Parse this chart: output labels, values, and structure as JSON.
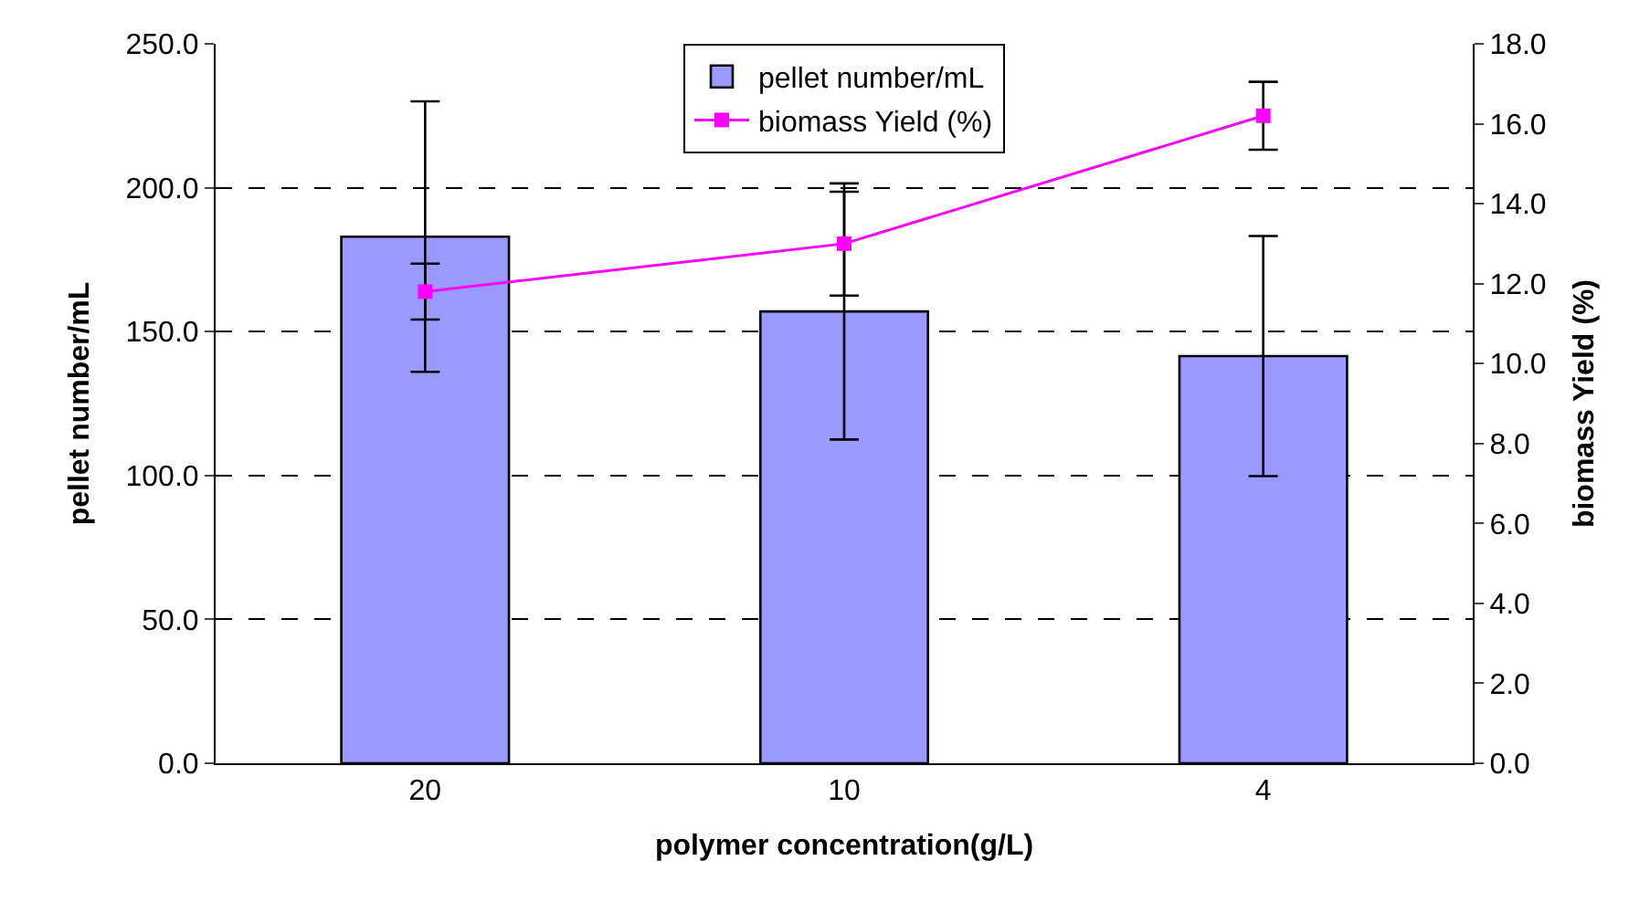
{
  "chart_data": {
    "type": "bar",
    "xlabel": "polymer concentration(g/L)",
    "ylabel": "pellet number/mL",
    "y2label": "biomass Yield (%)",
    "categories": [
      "20",
      "10",
      "4"
    ],
    "series": [
      {
        "name": "pellet number/mL",
        "color": "#9999ff",
        "values": [
          183,
          157,
          141.5
        ],
        "errors": [
          47,
          44.5,
          41.7
        ]
      },
      {
        "name": "biomass Yield (%)",
        "type": "line",
        "axis": "y2",
        "color": "#ff00ff",
        "marker": "square",
        "values": [
          11.8,
          13.0,
          16.2
        ],
        "errors": [
          0.7,
          1.3,
          0.85
        ]
      }
    ],
    "ylim": [
      0,
      250
    ],
    "yticks": [
      {
        "value": 0,
        "label": "0.0"
      },
      {
        "value": 50,
        "label": "50.0"
      },
      {
        "value": 100,
        "label": "100.0"
      },
      {
        "value": 150,
        "label": "150.0"
      },
      {
        "value": 200,
        "label": "200.0"
      },
      {
        "value": 250,
        "label": "250.0"
      }
    ],
    "y2lim": [
      0,
      18
    ],
    "y2ticks": [
      {
        "value": 0,
        "label": "0.0"
      },
      {
        "value": 2,
        "label": "2.0"
      },
      {
        "value": 4,
        "label": "4.0"
      },
      {
        "value": 6,
        "label": "6.0"
      },
      {
        "value": 8,
        "label": "8.0"
      },
      {
        "value": 10,
        "label": "10.0"
      },
      {
        "value": 12,
        "label": "12.0"
      },
      {
        "value": 14,
        "label": "14.0"
      },
      {
        "value": 16,
        "label": "16.0"
      },
      {
        "value": 18,
        "label": "18.0"
      }
    ],
    "grid": "y",
    "legend": "top"
  }
}
